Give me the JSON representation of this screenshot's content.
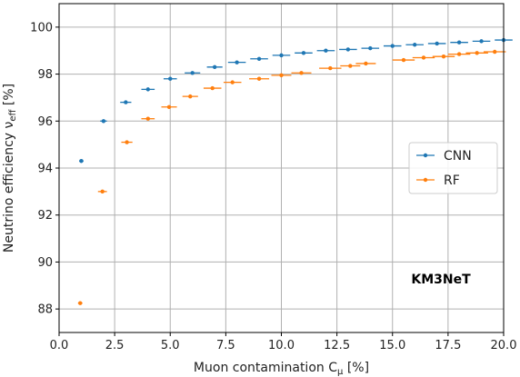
{
  "chart_data": {
    "type": "scatter",
    "xlabel": "Muon contamination C",
    "xlabel_sub": "μ",
    "xlabel_unit": " [%]",
    "ylabel": "Neutrino efficiency ν",
    "ylabel_sub": "eff",
    "ylabel_unit": " [%]",
    "xlim": [
      0,
      20
    ],
    "ylim": [
      87,
      101
    ],
    "xticks": [
      0,
      2.5,
      5,
      7.5,
      10,
      12.5,
      15,
      17.5,
      20
    ],
    "xtick_labels": [
      "0.0",
      "2.5",
      "5.0",
      "7.5",
      "10.0",
      "12.5",
      "15.0",
      "17.5",
      "20.0"
    ],
    "yticks": [
      88,
      90,
      92,
      94,
      96,
      98,
      100
    ],
    "ytick_labels": [
      "88",
      "90",
      "92",
      "94",
      "96",
      "98",
      "100"
    ],
    "grid": true,
    "legend_position": "center-right",
    "annotation": "KM3NeT",
    "series": [
      {
        "name": "CNN",
        "color": "#1f77b4",
        "points": [
          {
            "x": 1.0,
            "y": 94.3,
            "xerr": 0.1
          },
          {
            "x": 2.0,
            "y": 96.0,
            "xerr": 0.15
          },
          {
            "x": 3.0,
            "y": 96.8,
            "xerr": 0.25
          },
          {
            "x": 4.0,
            "y": 97.35,
            "xerr": 0.3
          },
          {
            "x": 5.0,
            "y": 97.8,
            "xerr": 0.3
          },
          {
            "x": 6.0,
            "y": 98.05,
            "xerr": 0.35
          },
          {
            "x": 7.0,
            "y": 98.3,
            "xerr": 0.35
          },
          {
            "x": 8.0,
            "y": 98.5,
            "xerr": 0.4
          },
          {
            "x": 9.0,
            "y": 98.65,
            "xerr": 0.4
          },
          {
            "x": 10.0,
            "y": 98.8,
            "xerr": 0.4
          },
          {
            "x": 11.0,
            "y": 98.9,
            "xerr": 0.4
          },
          {
            "x": 12.0,
            "y": 99.0,
            "xerr": 0.4
          },
          {
            "x": 13.0,
            "y": 99.05,
            "xerr": 0.4
          },
          {
            "x": 14.0,
            "y": 99.1,
            "xerr": 0.4
          },
          {
            "x": 15.0,
            "y": 99.2,
            "xerr": 0.4
          },
          {
            "x": 16.0,
            "y": 99.25,
            "xerr": 0.4
          },
          {
            "x": 17.0,
            "y": 99.3,
            "xerr": 0.4
          },
          {
            "x": 18.0,
            "y": 99.35,
            "xerr": 0.4
          },
          {
            "x": 19.0,
            "y": 99.4,
            "xerr": 0.4
          },
          {
            "x": 20.0,
            "y": 99.45,
            "xerr": 0.4
          }
        ]
      },
      {
        "name": "RF",
        "color": "#ff7f0e",
        "points": [
          {
            "x": 0.95,
            "y": 88.25,
            "xerr": 0.1
          },
          {
            "x": 1.95,
            "y": 93.0,
            "xerr": 0.2
          },
          {
            "x": 3.05,
            "y": 95.1,
            "xerr": 0.25
          },
          {
            "x": 4.0,
            "y": 96.1,
            "xerr": 0.3
          },
          {
            "x": 4.95,
            "y": 96.6,
            "xerr": 0.35
          },
          {
            "x": 5.9,
            "y": 97.05,
            "xerr": 0.35
          },
          {
            "x": 6.9,
            "y": 97.4,
            "xerr": 0.4
          },
          {
            "x": 7.8,
            "y": 97.65,
            "xerr": 0.4
          },
          {
            "x": 9.0,
            "y": 97.8,
            "xerr": 0.45
          },
          {
            "x": 10.0,
            "y": 97.95,
            "xerr": 0.45
          },
          {
            "x": 10.9,
            "y": 98.05,
            "xerr": 0.45
          },
          {
            "x": 12.2,
            "y": 98.25,
            "xerr": 0.5
          },
          {
            "x": 13.1,
            "y": 98.35,
            "xerr": 0.45
          },
          {
            "x": 13.8,
            "y": 98.45,
            "xerr": 0.45
          },
          {
            "x": 15.5,
            "y": 98.6,
            "xerr": 0.5
          },
          {
            "x": 16.4,
            "y": 98.7,
            "xerr": 0.5
          },
          {
            "x": 17.3,
            "y": 98.75,
            "xerr": 0.5
          },
          {
            "x": 18.0,
            "y": 98.85,
            "xerr": 0.5
          },
          {
            "x": 18.8,
            "y": 98.9,
            "xerr": 0.5
          },
          {
            "x": 19.6,
            "y": 98.95,
            "xerr": 0.5
          }
        ]
      }
    ]
  }
}
